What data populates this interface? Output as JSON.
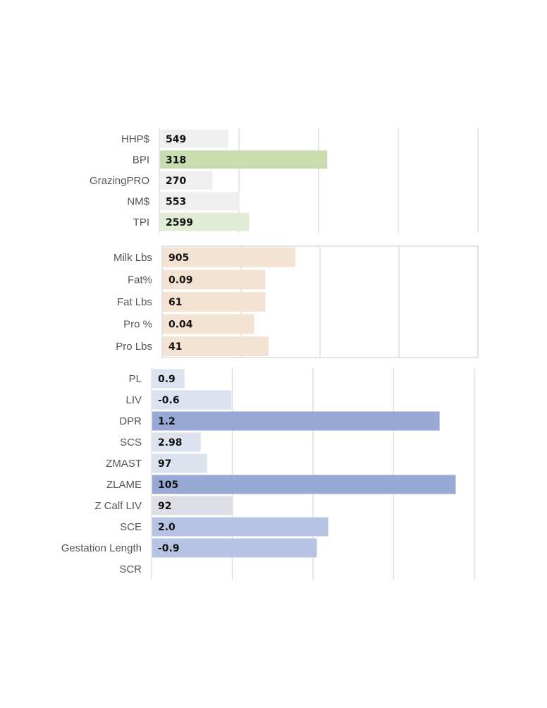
{
  "chart_data": [
    {
      "type": "bar",
      "orientation": "horizontal",
      "grid": true,
      "categories": [
        "HHP$",
        "BPI",
        "GrazingPRO",
        "NM$",
        "TPI"
      ],
      "value_labels": [
        "549",
        "318",
        "270",
        "553",
        "2599"
      ],
      "values": [
        0.43,
        1.05,
        0.33,
        0.5,
        0.56
      ],
      "colors": [
        "#efefef",
        "#c9ddb0",
        "#efefef",
        "#efefef",
        "#e1ecd5"
      ]
    },
    {
      "type": "bar",
      "orientation": "horizontal",
      "grid": true,
      "categories": [
        "Milk Lbs",
        "Fat%",
        "Fat Lbs",
        "Pro %",
        "Pro Lbs"
      ],
      "value_labels": [
        "905",
        "0.09",
        "61",
        "0.04",
        "41"
      ],
      "values": [
        0.84,
        0.65,
        0.65,
        0.58,
        0.67
      ],
      "colors": [
        "#f4e2d2",
        "#f4e2d2",
        "#f4e2d2",
        "#f4e2d2",
        "#f4e2d2"
      ]
    },
    {
      "type": "bar",
      "orientation": "horizontal",
      "grid": true,
      "categories": [
        "PL",
        "LIV",
        "DPR",
        "SCS",
        "ZMAST",
        "ZLAME",
        "Z Calf LIV",
        "SCE",
        "Gestation Length",
        "SCR"
      ],
      "value_labels": [
        "0.9",
        "-0.6",
        "1.2",
        "2.98",
        "97",
        "105",
        "92",
        "2.0",
        "-0.9",
        ""
      ],
      "values": [
        0.2,
        0.49,
        1.78,
        0.3,
        0.34,
        1.88,
        0.5,
        1.09,
        1.02,
        0
      ],
      "colors": [
        "#dde2ef",
        "#dde2ef",
        "#97a9d4",
        "#dde2ef",
        "#dde2ef",
        "#97a9d4",
        "#dcdee3",
        "#b6c3e2",
        "#b6c3e2",
        "#dde2ef"
      ]
    }
  ]
}
